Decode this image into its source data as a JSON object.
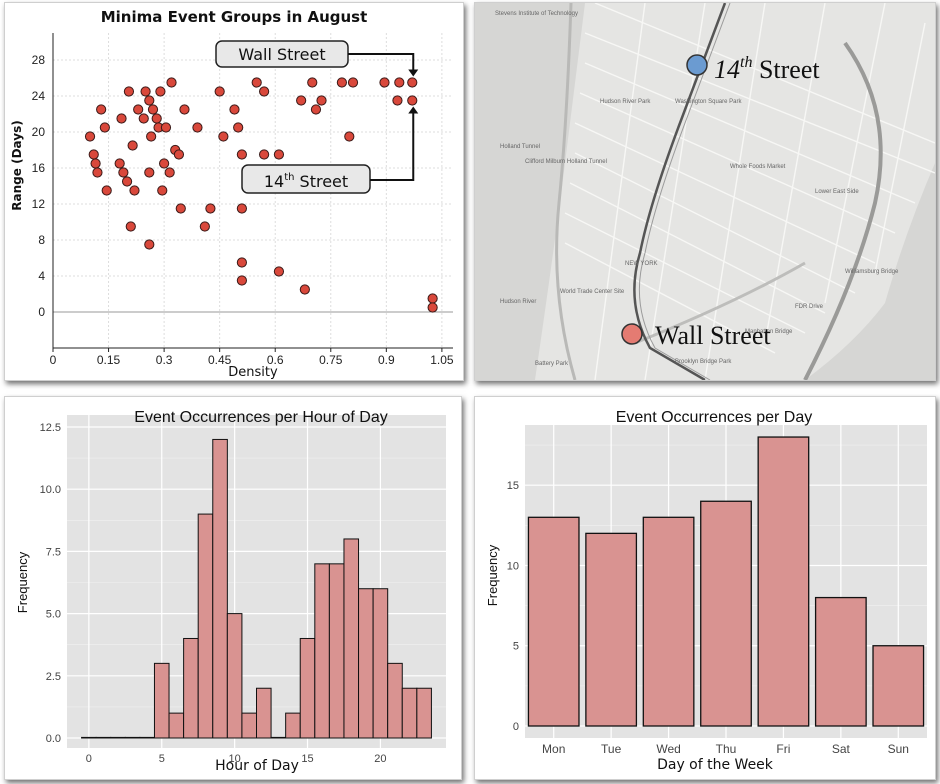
{
  "chart_data": [
    {
      "type": "scatter",
      "title": "Minima Event Groups in August",
      "xlabel": "Density",
      "ylabel": "Range (Days)",
      "xlim": [
        0,
        1.08
      ],
      "ylim": [
        -4,
        31
      ],
      "x_ticks": [
        "0",
        "0.15",
        "0.3",
        "0.45",
        "0.6",
        "0.75",
        "0.9",
        "1.05"
      ],
      "y_ticks": [
        "0",
        "4",
        "8",
        "12",
        "16",
        "20",
        "24",
        "28"
      ],
      "grid": true,
      "points": [
        {
          "x": 0.1,
          "y": 19.5
        },
        {
          "x": 0.11,
          "y": 17.5
        },
        {
          "x": 0.115,
          "y": 16.5
        },
        {
          "x": 0.12,
          "y": 15.5
        },
        {
          "x": 0.13,
          "y": 22.5
        },
        {
          "x": 0.14,
          "y": 20.5
        },
        {
          "x": 0.145,
          "y": 13.5
        },
        {
          "x": 0.18,
          "y": 16.5
        },
        {
          "x": 0.185,
          "y": 21.5
        },
        {
          "x": 0.19,
          "y": 15.5
        },
        {
          "x": 0.2,
          "y": 14.5
        },
        {
          "x": 0.205,
          "y": 24.5
        },
        {
          "x": 0.21,
          "y": 9.5
        },
        {
          "x": 0.215,
          "y": 18.5
        },
        {
          "x": 0.22,
          "y": 13.5
        },
        {
          "x": 0.23,
          "y": 22.5
        },
        {
          "x": 0.245,
          "y": 21.5
        },
        {
          "x": 0.25,
          "y": 24.5
        },
        {
          "x": 0.26,
          "y": 23.5
        },
        {
          "x": 0.265,
          "y": 19.5
        },
        {
          "x": 0.26,
          "y": 15.5
        },
        {
          "x": 0.26,
          "y": 7.5
        },
        {
          "x": 0.27,
          "y": 22.5
        },
        {
          "x": 0.28,
          "y": 21.5
        },
        {
          "x": 0.285,
          "y": 20.5
        },
        {
          "x": 0.29,
          "y": 24.5
        },
        {
          "x": 0.295,
          "y": 13.5
        },
        {
          "x": 0.3,
          "y": 16.5
        },
        {
          "x": 0.305,
          "y": 20.5
        },
        {
          "x": 0.32,
          "y": 25.5
        },
        {
          "x": 0.315,
          "y": 15.5
        },
        {
          "x": 0.33,
          "y": 18.0
        },
        {
          "x": 0.34,
          "y": 17.5
        },
        {
          "x": 0.345,
          "y": 11.5
        },
        {
          "x": 0.355,
          "y": 22.5
        },
        {
          "x": 0.39,
          "y": 20.5
        },
        {
          "x": 0.41,
          "y": 9.5
        },
        {
          "x": 0.425,
          "y": 11.5
        },
        {
          "x": 0.45,
          "y": 24.5
        },
        {
          "x": 0.46,
          "y": 19.5
        },
        {
          "x": 0.49,
          "y": 22.5
        },
        {
          "x": 0.5,
          "y": 20.5
        },
        {
          "x": 0.51,
          "y": 17.5
        },
        {
          "x": 0.51,
          "y": 11.5
        },
        {
          "x": 0.51,
          "y": 5.5
        },
        {
          "x": 0.51,
          "y": 3.5
        },
        {
          "x": 0.55,
          "y": 25.5
        },
        {
          "x": 0.57,
          "y": 24.5
        },
        {
          "x": 0.57,
          "y": 17.5
        },
        {
          "x": 0.61,
          "y": 17.5
        },
        {
          "x": 0.61,
          "y": 4.5
        },
        {
          "x": 0.67,
          "y": 23.5
        },
        {
          "x": 0.68,
          "y": 2.5
        },
        {
          "x": 0.7,
          "y": 25.5
        },
        {
          "x": 0.71,
          "y": 22.5
        },
        {
          "x": 0.725,
          "y": 23.5
        },
        {
          "x": 0.78,
          "y": 25.5
        },
        {
          "x": 0.81,
          "y": 25.5
        },
        {
          "x": 0.8,
          "y": 19.5
        },
        {
          "x": 0.895,
          "y": 25.5
        },
        {
          "x": 0.935,
          "y": 25.5
        },
        {
          "x": 0.93,
          "y": 23.5
        },
        {
          "x": 0.97,
          "y": 25.5
        },
        {
          "x": 0.97,
          "y": 23.5
        },
        {
          "x": 1.025,
          "y": 1.5
        },
        {
          "x": 1.025,
          "y": 0.5
        }
      ],
      "annotations": [
        {
          "text": "Wall Street",
          "target": {
            "x": 0.97,
            "y": 25.5
          }
        },
        {
          "text": "14",
          "superscript": "th",
          "suffix": " Street",
          "target": {
            "x": 0.97,
            "y": 23.5
          }
        }
      ],
      "point_color": "#d9483b"
    },
    {
      "type": "bar",
      "title": "Event Occurrences per Hour of Day",
      "xlabel": "Hour of Day",
      "ylabel": "Frequency",
      "x": [
        0,
        1,
        2,
        3,
        4,
        5,
        6,
        7,
        8,
        9,
        10,
        11,
        12,
        13,
        14,
        15,
        16,
        17,
        18,
        19,
        20,
        21,
        22,
        23
      ],
      "values": [
        0,
        0,
        0,
        0,
        0,
        3,
        1,
        4,
        9,
        12,
        5,
        1,
        2,
        0,
        1,
        4,
        7,
        7,
        8,
        6,
        6,
        3,
        2,
        2
      ],
      "x_ticks": [
        "0",
        "5",
        "10",
        "15",
        "20"
      ],
      "y_ticks": [
        "0.0",
        "2.5",
        "5.0",
        "7.5",
        "10.0",
        "12.5"
      ],
      "ylim": [
        0,
        12.5
      ],
      "bar_color": "#d99391"
    },
    {
      "type": "bar",
      "title": "Event Occurrences per Day",
      "xlabel": "Day of the Week",
      "ylabel": "Frequency",
      "categories": [
        "Mon",
        "Tue",
        "Wed",
        "Thu",
        "Fri",
        "Sat",
        "Sun"
      ],
      "values": [
        13,
        12,
        13,
        14,
        18,
        8,
        5
      ],
      "y_ticks": [
        "0",
        "5",
        "10",
        "15"
      ],
      "ylim": [
        0,
        18
      ],
      "bar_color": "#d99391"
    }
  ],
  "map": {
    "labels": {
      "fourteenth": {
        "base": "14",
        "sup": "th",
        "rest": " Street",
        "color": "#6b9bd1"
      },
      "wall": {
        "text": "Wall Street",
        "color": "#e47b72"
      }
    },
    "street_labels": [
      "Stevens Institute of Technology",
      "Hudson River Park",
      "Holland Tunnel",
      "Clifford Milburn Holland Tunnel",
      "Washington Square Park",
      "Whole Foods Market",
      "Lower East Side",
      "NEW YORK",
      "World Trade Center Site",
      "Battery Park",
      "Brooklyn Bridge Park",
      "Williamsburg Bridge",
      "FDR Drive",
      "Manhattan Bridge",
      "Hudson River"
    ]
  }
}
